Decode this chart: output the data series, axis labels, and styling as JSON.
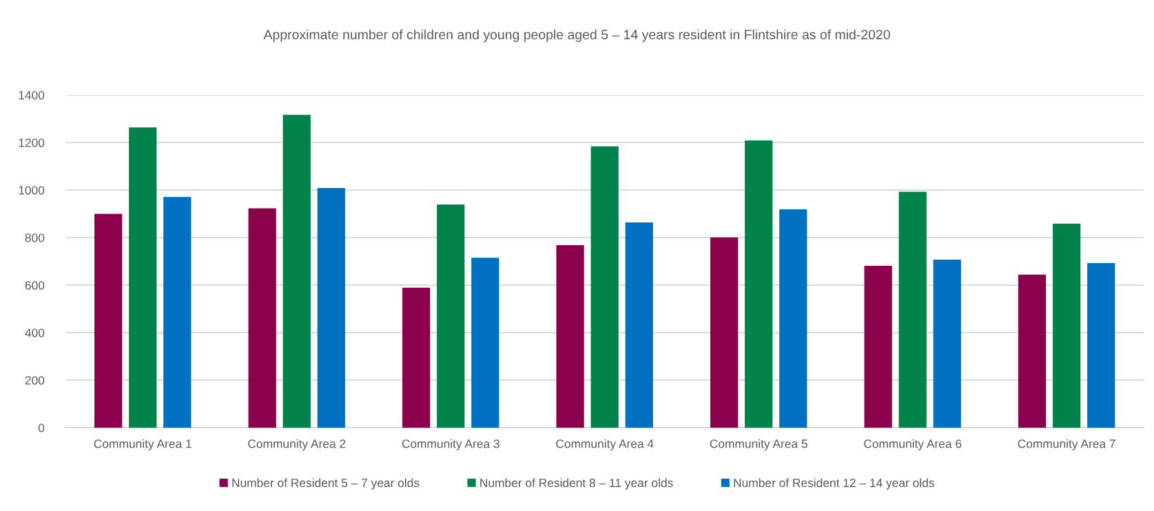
{
  "chart_data": {
    "type": "bar",
    "title": "Approximate number of children and young people aged 5 – 14 years resident in Flintshire as of mid-2020",
    "categories": [
      "Community Area 1",
      "Community Area 2",
      "Community Area 3",
      "Community Area 4",
      "Community Area 5",
      "Community Area 6",
      "Community Area 7"
    ],
    "series": [
      {
        "name": "Number of Resident 5 – 7 year olds",
        "color": "#8b004b",
        "values": [
          900,
          923,
          589,
          768,
          801,
          681,
          644
        ]
      },
      {
        "name": "Number of Resident 8 – 11 year olds",
        "color": "#00824a",
        "values": [
          1264,
          1317,
          939,
          1184,
          1209,
          993,
          859
        ]
      },
      {
        "name": "Number of Resident 12 – 14 year olds",
        "color": "#0070c0",
        "values": [
          971,
          1009,
          715,
          864,
          919,
          707,
          693
        ]
      }
    ],
    "ylim": [
      0,
      1400
    ],
    "yticks": [
      0,
      200,
      400,
      600,
      800,
      1000,
      1200,
      1400
    ],
    "grid": "y",
    "legend": "bottom"
  }
}
